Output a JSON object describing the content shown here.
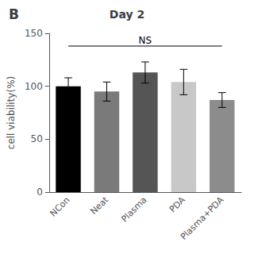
{
  "chart_data": {
    "type": "bar",
    "title": "Day 2",
    "panel_label": "B",
    "ylabel": "cell viability(%)",
    "categories": [
      "NCon",
      "Neat",
      "Plasma",
      "PDA",
      "Plasma+PDA"
    ],
    "values": [
      100,
      95,
      113,
      104,
      87
    ],
    "errors": [
      8,
      9,
      10,
      12,
      7
    ],
    "colors": [
      "#000000",
      "#7a7a7a",
      "#555555",
      "#c8c8c8",
      "#8c8c8c"
    ],
    "ylim": [
      0,
      150
    ],
    "yticks": [
      0,
      50,
      100,
      150
    ],
    "grid": false,
    "annotations": [
      {
        "text": "NS",
        "y": 139,
        "line_y": 138,
        "from": "NCon",
        "to": "Plasma+PDA"
      }
    ]
  }
}
